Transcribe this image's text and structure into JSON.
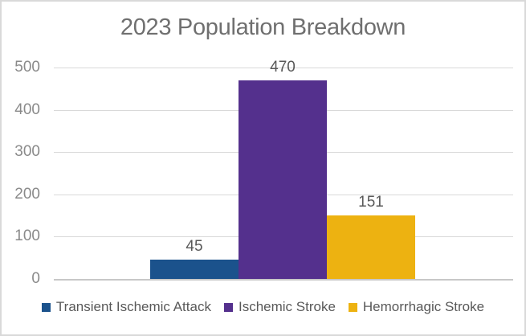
{
  "chart_data": {
    "type": "bar",
    "title": "2023 Population Breakdown",
    "categories": [
      "Transient Ischemic Attack",
      "Ischemic Stroke",
      "Hemorrhagic Stroke"
    ],
    "series": [
      {
        "name": "Transient Ischemic Attack",
        "value": 45,
        "color": "#1B528C"
      },
      {
        "name": "Ischemic Stroke",
        "value": 470,
        "color": "#54308D"
      },
      {
        "name": "Hemorrhagic Stroke",
        "value": 151,
        "color": "#EDB211"
      }
    ],
    "values": [
      45,
      470,
      151
    ],
    "data_labels": [
      "45",
      "470",
      "151"
    ],
    "xlabel": "",
    "ylabel": "",
    "ylim": [
      0,
      500
    ],
    "yticks": [
      "0",
      "100",
      "200",
      "300",
      "400",
      "500"
    ],
    "grid": true,
    "legend_position": "bottom"
  },
  "style": {
    "background": "#FFFFFF",
    "border_color": "#D9D9D9",
    "title_color": "#6F6F6F",
    "tick_color": "#8A8A8A",
    "data_label_color": "#595959",
    "legend_text_color": "#595959",
    "gridline_color": "#D9D9D9",
    "axis_line_color": "#C8C8C8"
  }
}
